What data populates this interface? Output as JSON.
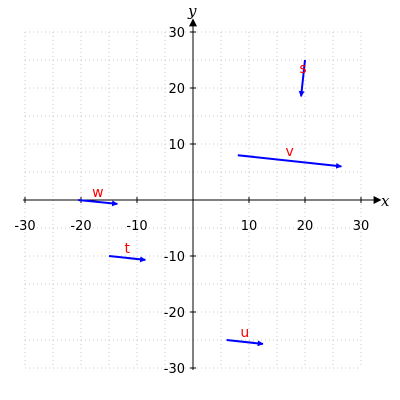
{
  "chart_data": {
    "type": "vector-field",
    "title": "",
    "xlabel": "x",
    "ylabel": "y",
    "xlim": [
      -30,
      30
    ],
    "ylim": [
      -30,
      30
    ],
    "grid": true,
    "x_ticks": [
      -30,
      -20,
      -10,
      10,
      20,
      30
    ],
    "y_ticks": [
      -30,
      -20,
      -10,
      10,
      20,
      30
    ],
    "x_tick_labels": [
      "-30",
      "-20",
      "-10",
      "10",
      "20",
      "30"
    ],
    "y_tick_labels": [
      "-30",
      "-20",
      "-10",
      "10",
      "20",
      "30"
    ],
    "vectors": [
      {
        "label": "s",
        "x0": 20,
        "y0": 25,
        "x1": 19.3,
        "y1": 18.5
      },
      {
        "label": "v",
        "x0": 8,
        "y0": 8,
        "x1": 26.5,
        "y1": 6
      },
      {
        "label": "w",
        "x0": -20.5,
        "y0": 0,
        "x1": -13.5,
        "y1": -0.7
      },
      {
        "label": "t",
        "x0": -15,
        "y0": -10,
        "x1": -8.5,
        "y1": -10.7
      },
      {
        "label": "u",
        "x0": 6,
        "y0": -25,
        "x1": 12.5,
        "y1": -25.7
      }
    ],
    "colors": {
      "vector": "#0000ff",
      "label": "#ff0000",
      "grid": "#bbbbbb",
      "axis": "#000000"
    }
  }
}
